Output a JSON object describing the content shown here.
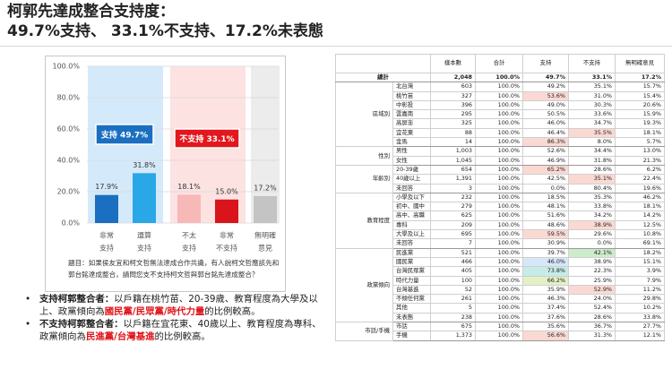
{
  "title": [
    "柯郭先達成整合支持度：",
    "49.7%支持、 33.1%不支持、17.2%未表態"
  ],
  "chart_data": {
    "type": "bar",
    "categories": [
      [
        "非常",
        "支持"
      ],
      [
        "還算",
        "支持"
      ],
      [
        "不太",
        "支持"
      ],
      [
        "非常",
        "不支持"
      ],
      [
        "無明確",
        "意見"
      ]
    ],
    "values": [
      17.9,
      31.8,
      18.1,
      15.0,
      17.2
    ],
    "value_labels": [
      "17.9%",
      "31.8%",
      "18.1%",
      "15.0%",
      "17.2%"
    ],
    "colors": [
      "#1a6fc0",
      "#2aa7e6",
      "#f7b8b8",
      "#d9141b",
      "#c4c4c4"
    ],
    "band_colors": [
      "#d4eafa",
      "#d4eafa",
      "#fde2e2",
      "#fde2e2",
      "#ececec"
    ],
    "ylim": [
      0,
      100
    ],
    "yticks": [
      {
        "value": 0,
        "label": "0.0%"
      },
      {
        "value": 20,
        "label": "20.0%"
      },
      {
        "value": 40,
        "label": "40.0%"
      },
      {
        "value": 60,
        "label": "60.0%"
      },
      {
        "value": 80,
        "label": "80.0%"
      },
      {
        "value": 100,
        "label": "100.0%"
      }
    ],
    "grid": true,
    "annotations": [
      {
        "text": "支持 49.7%",
        "color": "#1a6fc0"
      },
      {
        "text": "不支持 33.1%",
        "color": "#e3171d"
      }
    ],
    "note": "題目：如果侯友宜和柯文哲無法達成合作共識，有人說柯文哲應該先和郭台銘達成整合，請問您支不支持柯文哲與郭台銘先達成整合？"
  },
  "bullets": [
    [
      {
        "text": "支持柯郭整合者：",
        "bold": true
      },
      {
        "text": "以戶籍在桃竹苗、20-39歲、教育程度為大學及以上、政黨傾向為"
      },
      {
        "text": "國民黨/民眾黨/時代力量",
        "bold": true,
        "color": "#e0161c"
      },
      {
        "text": "的比例較高。"
      }
    ],
    [
      {
        "text": "不支持柯郭整合者：",
        "bold": true
      },
      {
        "text": "以戶籍在宜花東、40歲以上、教育程度為專科、政黨傾向為"
      },
      {
        "text": "民進黨/台灣基進",
        "bold": true,
        "color": "#e0161c"
      },
      {
        "text": "的比例較高。"
      }
    ]
  ],
  "table": {
    "columns": [
      "樣本數",
      "合計",
      "支持",
      "不支持",
      "無明確意見"
    ],
    "total": {
      "label": "總計",
      "cells": [
        "2,048",
        "100.0%",
        "49.7%",
        "33.1%",
        "17.2%"
      ]
    },
    "groups": [
      {
        "name": "區域別",
        "rows": [
          {
            "label": "北台灣",
            "cells": [
              "603",
              "100.0%",
              "49.2%",
              "35.1%",
              "15.7%"
            ]
          },
          {
            "label": "桃竹苗",
            "cells": [
              "327",
              "100.0%",
              {
                "text": "53.6%",
                "bg": "#fbd9d3"
              },
              "31.0%",
              "15.4%"
            ]
          },
          {
            "label": "中彰投",
            "cells": [
              "396",
              "100.0%",
              "49.0%",
              "30.3%",
              "20.6%"
            ]
          },
          {
            "label": "雲嘉南",
            "cells": [
              "295",
              "100.0%",
              "50.5%",
              "33.6%",
              "15.9%"
            ]
          },
          {
            "label": "高屏澎",
            "cells": [
              "325",
              "100.0%",
              "46.0%",
              "34.7%",
              "19.3%"
            ]
          },
          {
            "label": "宜花東",
            "cells": [
              "88",
              "100.0%",
              "46.4%",
              {
                "text": "35.5%",
                "bg": "#fbd9d3"
              },
              "18.1%"
            ]
          },
          {
            "label": "金馬",
            "cells": [
              "14",
              "100.0%",
              {
                "text": "86.3%",
                "bg": "#fbd9d3"
              },
              "8.0%",
              "5.7%"
            ]
          }
        ]
      },
      {
        "name": "性別",
        "rows": [
          {
            "label": "男性",
            "cells": [
              "1,003",
              "100.0%",
              "52.6%",
              "34.4%",
              "13.0%"
            ]
          },
          {
            "label": "女性",
            "cells": [
              "1,045",
              "100.0%",
              "46.9%",
              "31.8%",
              "21.3%"
            ]
          }
        ]
      },
      {
        "name": "年齡別",
        "rows": [
          {
            "label": "20-39歲",
            "cells": [
              "654",
              "100.0%",
              {
                "text": "65.2%",
                "bg": "#fbd9d3"
              },
              "28.6%",
              "6.2%"
            ]
          },
          {
            "label": "40歲以上",
            "cells": [
              "1,391",
              "100.0%",
              "42.5%",
              {
                "text": "35.1%",
                "bg": "#fbd9d3"
              },
              "22.4%"
            ]
          },
          {
            "label": "未回答",
            "cells": [
              "3",
              "100.0%",
              "0.0%",
              "80.4%",
              "19.6%"
            ]
          }
        ]
      },
      {
        "name": "教育程度",
        "rows": [
          {
            "label": "小學及以下",
            "cells": [
              "232",
              "100.0%",
              "18.5%",
              "35.3%",
              "46.2%"
            ]
          },
          {
            "label": "初中、國中",
            "cells": [
              "279",
              "100.0%",
              "48.1%",
              "33.8%",
              "18.1%"
            ]
          },
          {
            "label": "高中、高職",
            "cells": [
              "625",
              "100.0%",
              "51.6%",
              "34.2%",
              "14.2%"
            ]
          },
          {
            "label": "專科",
            "cells": [
              "209",
              "100.0%",
              "48.6%",
              {
                "text": "38.9%",
                "bg": "#fbd9d3"
              },
              "12.5%"
            ]
          },
          {
            "label": "大學及以上",
            "cells": [
              "695",
              "100.0%",
              {
                "text": "59.5%",
                "bg": "#fbd9d3"
              },
              "29.6%",
              "10.8%"
            ]
          },
          {
            "label": "未回答",
            "cells": [
              "7",
              "100.0%",
              "30.9%",
              "0.0%",
              "69.1%"
            ]
          }
        ]
      },
      {
        "name": "政黨傾向",
        "rows": [
          {
            "label": "民進黨",
            "cells": [
              "521",
              "100.0%",
              "39.7%",
              {
                "text": "42.1%",
                "bg": "#cdeccb"
              },
              "18.2%"
            ]
          },
          {
            "label": "國民黨",
            "cells": [
              "466",
              "100.0%",
              {
                "text": "46.0%",
                "bg": "#d6e7f8"
              },
              "38.9%",
              "15.1%"
            ]
          },
          {
            "label": "台灣民眾黨",
            "cells": [
              "405",
              "100.0%",
              {
                "text": "73.8%",
                "bg": "#c7ebe6"
              },
              "22.3%",
              "3.9%"
            ]
          },
          {
            "label": "時代力量",
            "cells": [
              "100",
              "100.0%",
              {
                "text": "66.2%",
                "bg": "#e3f0c6"
              },
              "25.9%",
              "7.9%"
            ]
          },
          {
            "label": "台灣基進",
            "cells": [
              "52",
              "100.0%",
              "35.9%",
              {
                "text": "52.9%",
                "bg": "#fbd9d3"
              },
              "11.2%"
            ]
          },
          {
            "label": "不傾任何黨",
            "cells": [
              "261",
              "100.0%",
              "46.3%",
              "24.0%",
              "29.8%"
            ]
          },
          {
            "label": "其他",
            "cells": [
              "5",
              "100.0%",
              "37.4%",
              "52.4%",
              "10.2%"
            ]
          },
          {
            "label": "未表態",
            "cells": [
              "238",
              "100.0%",
              "37.6%",
              "28.6%",
              "33.8%"
            ]
          }
        ]
      },
      {
        "name": "市話/手機",
        "rows": [
          {
            "label": "市話",
            "cells": [
              "675",
              "100.0%",
              "35.6%",
              "36.7%",
              "27.7%"
            ]
          },
          {
            "label": "手機",
            "cells": [
              "1,373",
              "100.0%",
              {
                "text": "56.6%",
                "bg": "#fbd9d3"
              },
              "31.3%",
              "12.1%"
            ]
          }
        ]
      }
    ]
  }
}
